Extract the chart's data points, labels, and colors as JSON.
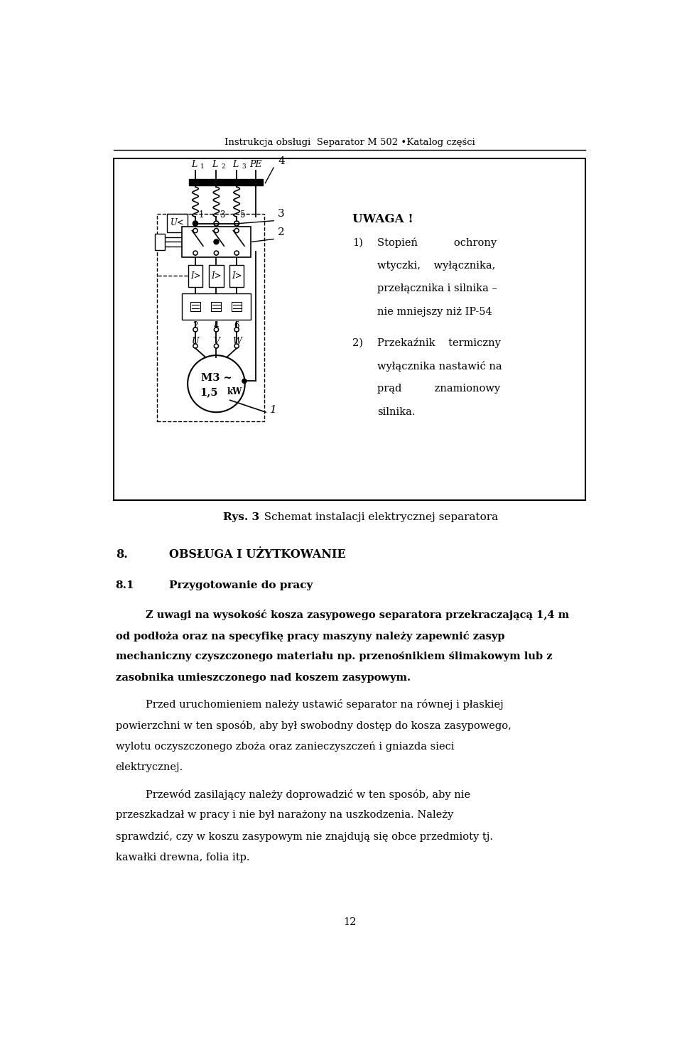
{
  "header_text": "Instrukcja obsługi  Separator M 502 •Katalog części",
  "footer_text": "12",
  "figure_caption_bold": "Rys. 3",
  "figure_caption_normal": "  Schemat instalacji elektrycznej separatora",
  "section_num": "8.",
  "section_title": "OBSŁUGA I UŻYTKOWANIE",
  "subsection_num": "8.1",
  "subsection_title": "Przygotowanie do pracy",
  "body_paragraphs": [
    "Z uwagi na wysokość kosza zasypowego separatora przekraczającą 1,4 m od podłoża oraz na specyfikę pracy maszyny należy zapewnić zasyp mechaniczny czyszczonego materiału np. przenośnikiem ślimakowym lub z zasobnika umieszczonego nad koszem zasypowym.",
    "Przed uruchomieniem należy ustawić separator na równej i płaskiej powierzchni w ten sposób, aby był swobodny dostęp do kosza zasypowego, wylotu oczyszczonego zboża oraz zanieczyszczeń i gniazda sieci elektrycznej.",
    "Przewód zasilający należy doprowadzić w ten sposób, aby nie przeszkadzał w pracy i nie był narażony na uszkodzenia. Należy sprawdzić, czy w koszu zasypowym nie znajdują się obce przedmioty tj. kawałki drewna, folia itp."
  ],
  "para0_bold": true,
  "uwaga_title": "UWAGA !",
  "uwaga_item1_num": "1)",
  "uwaga_item1_text": "Stopień           ochrony\nwtyczki,         wyłącznika,\nprzełącznika i silnika –\nnie mniejszy niż IP-54",
  "uwaga_item2_num": "2)",
  "uwaga_item2_text": "Przekaźnik        termiczny\nwyłącznika nastawić na\nprąd             znamionowy\nsilnika.",
  "bg_color": "#ffffff",
  "text_color": "#000000",
  "page_width": 9.6,
  "page_height": 14.92
}
